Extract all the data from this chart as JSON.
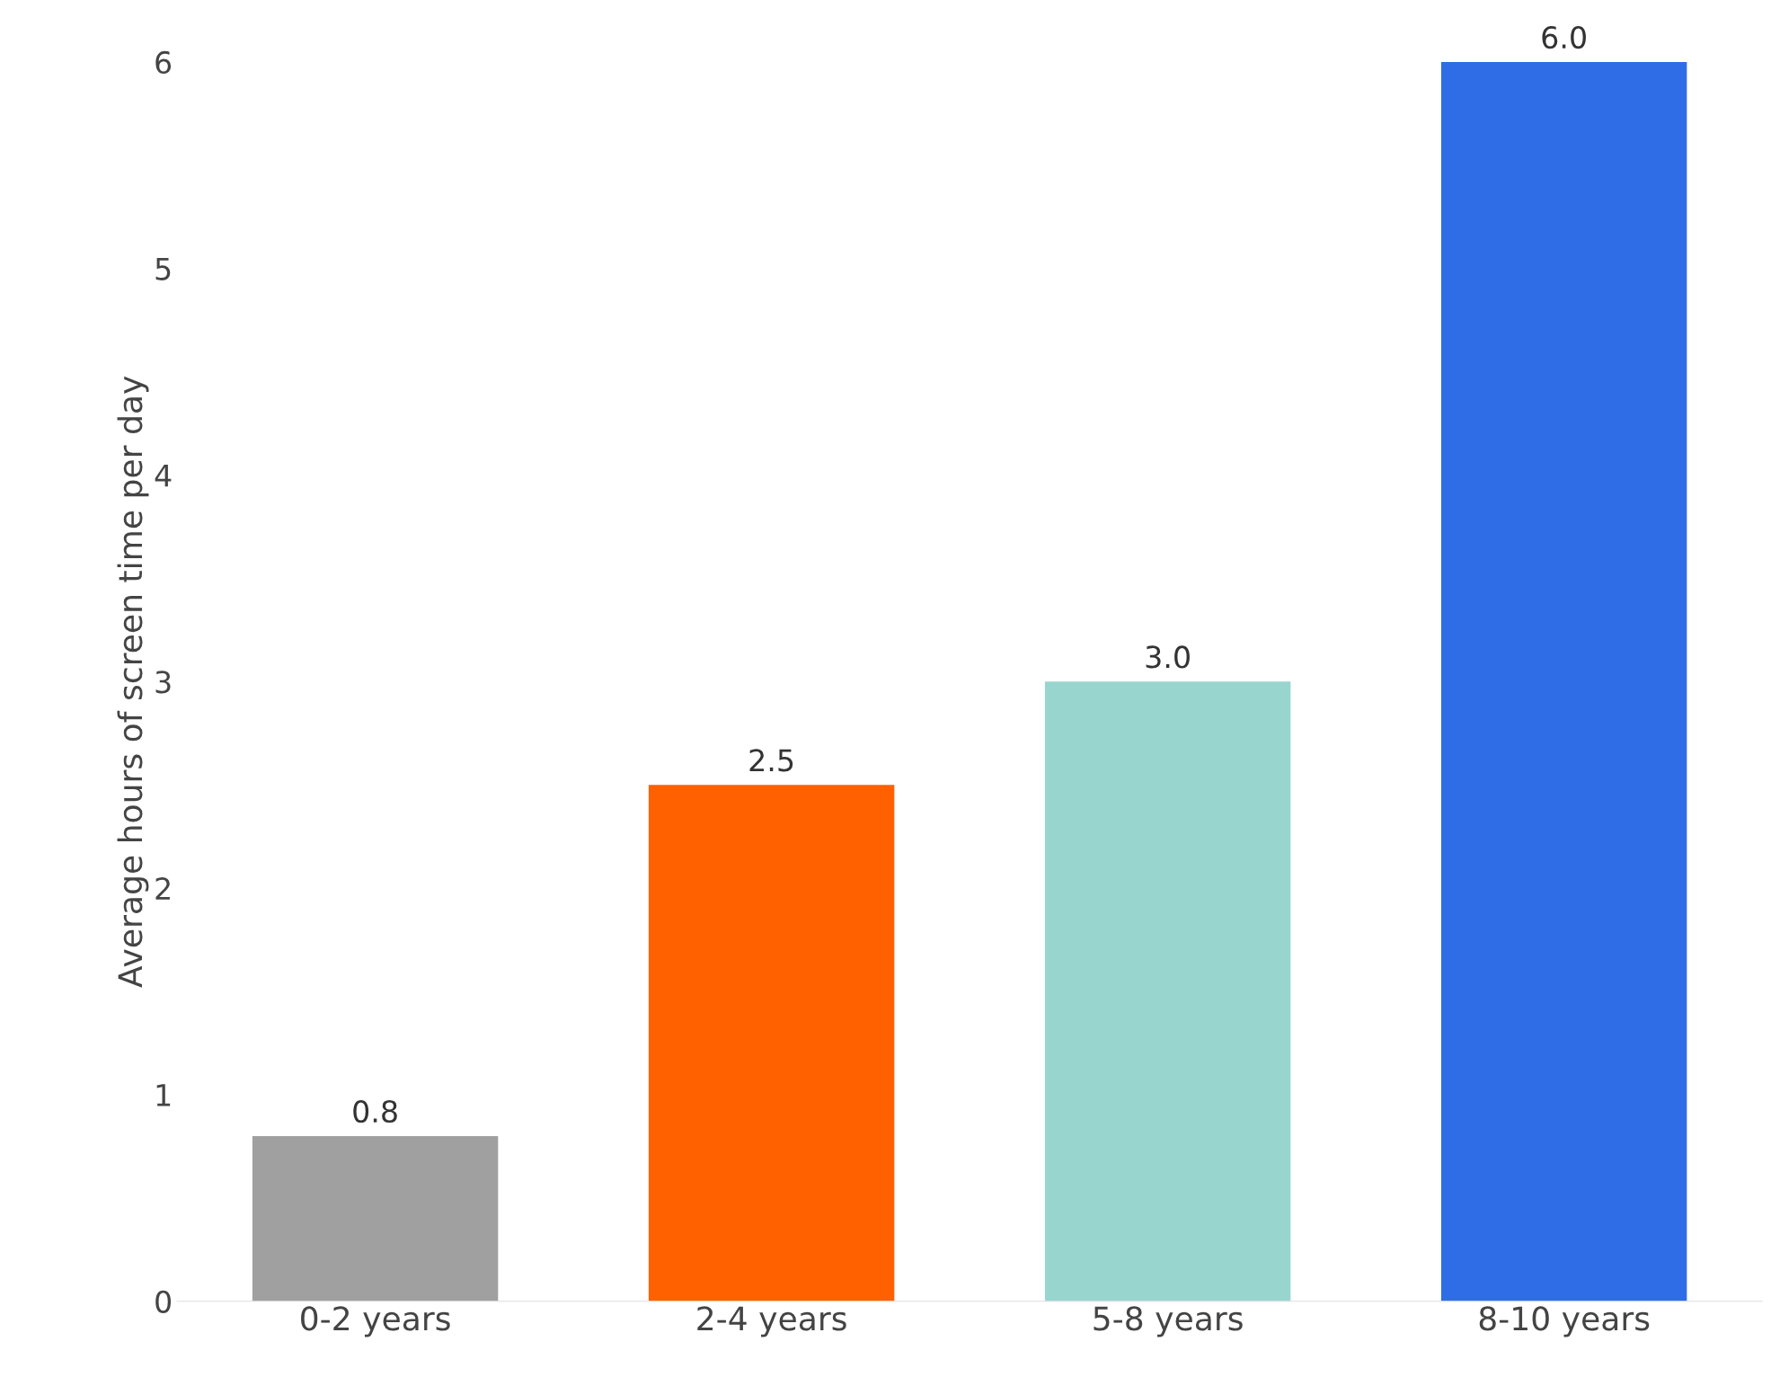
{
  "chart_data": {
    "type": "bar",
    "ylabel": "Average hours of screen time per day",
    "categories": [
      "0-2 years",
      "2-4 years",
      "5-8 years",
      "8-10 years"
    ],
    "values": [
      0.8,
      2.5,
      3.0,
      6.0
    ],
    "colors": [
      "#a0a0a0",
      "#ff6000",
      "#99d5cf",
      "#2e6de6"
    ],
    "ylim": [
      0,
      6
    ],
    "yticks": [
      0,
      1,
      2,
      3,
      4,
      5,
      6
    ],
    "value_labels": [
      "0.8",
      "2.5",
      "3.0",
      "6.0"
    ],
    "grid": false
  }
}
